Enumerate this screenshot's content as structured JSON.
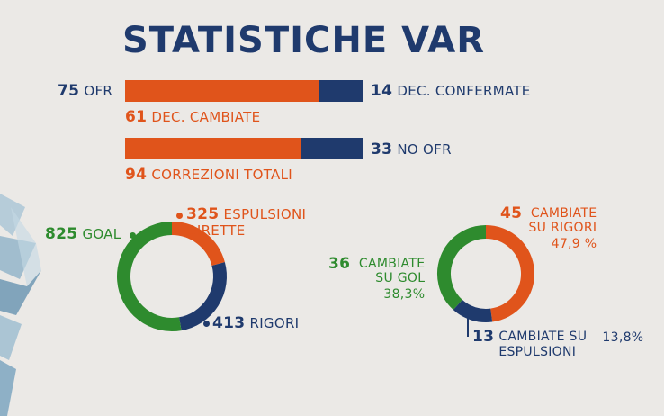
{
  "title": "STATISTICHE VAR",
  "colors": {
    "orange": "#e0541b",
    "navy": "#1f3a6d",
    "green": "#2e8b2e"
  },
  "chart_data": [
    {
      "type": "bar",
      "orientation": "horizontal-stacked",
      "series": [
        {
          "name": "DEC. CAMBIATE",
          "value": 61,
          "color": "#e0541b"
        },
        {
          "name": "DEC. CONFERMATE",
          "value": 14,
          "color": "#1f3a6d"
        }
      ],
      "total": {
        "value": 75,
        "label": "OFR"
      }
    },
    {
      "type": "bar",
      "orientation": "horizontal-stacked",
      "series": [
        {
          "name": "CORREZIONI TOTALI",
          "value": 94,
          "color": "#e0541b"
        },
        {
          "name": "NO OFR",
          "value": 33,
          "color": "#1f3a6d"
        }
      ]
    },
    {
      "type": "pie",
      "style": "donut",
      "slices": [
        {
          "value": 325,
          "label": "ESPULSIONI DIRETTE",
          "color": "#e0541b"
        },
        {
          "value": 413,
          "label": "RIGORI",
          "color": "#1f3a6d"
        },
        {
          "value": 825,
          "label": "GOAL",
          "color": "#2e8b2e"
        }
      ]
    },
    {
      "type": "pie",
      "style": "donut",
      "slices": [
        {
          "value": 45,
          "label": "CAMBIATE SU RIGORI",
          "percent": "47,9 %",
          "color": "#e0541b"
        },
        {
          "value": 13,
          "label": "CAMBIATE SU ESPULSIONI",
          "percent": "13,8%",
          "color": "#1f3a6d"
        },
        {
          "value": 36,
          "label": "CAMBIATE SU GOL",
          "percent": "38,3%",
          "color": "#2e8b2e"
        }
      ]
    }
  ]
}
